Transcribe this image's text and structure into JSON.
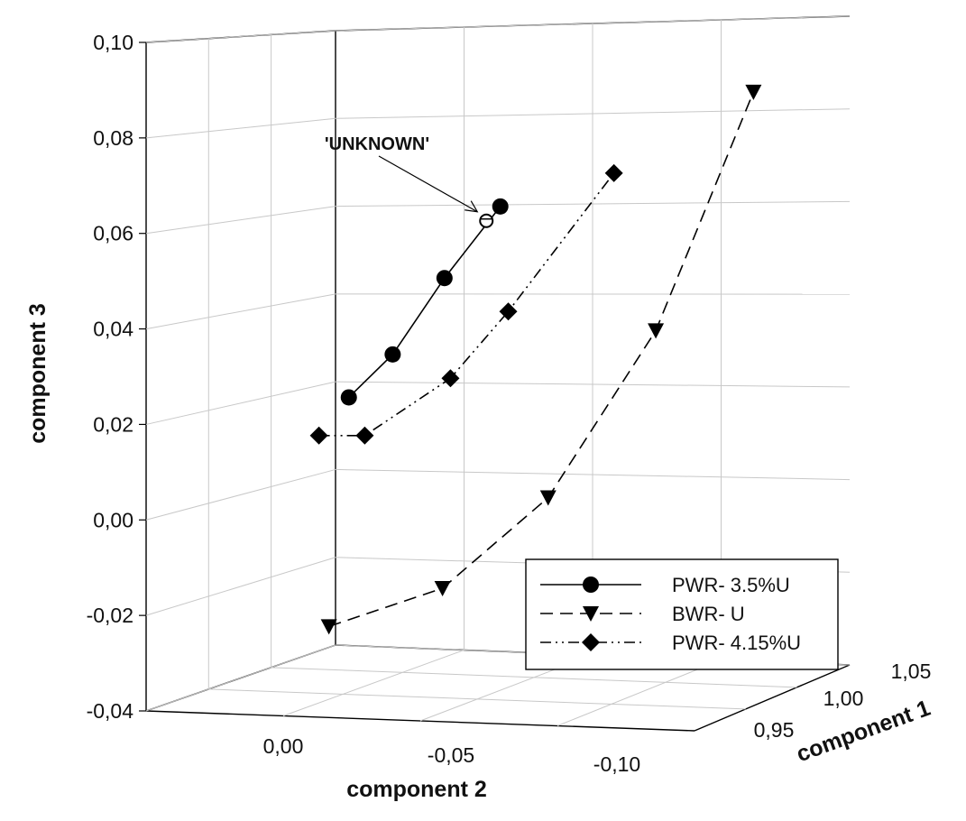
{
  "chart_data": {
    "type": "scatter",
    "projection": "3d",
    "axes": {
      "x": {
        "label": "component 1",
        "ticks": [
          "0,95",
          "1,00",
          "1,05"
        ],
        "range": [
          0.93,
          1.06
        ]
      },
      "y": {
        "label": "component 2",
        "ticks": [
          "0,00",
          "-0,05",
          "-0,10"
        ],
        "range": [
          0.03,
          -0.13
        ]
      },
      "z": {
        "label": "component 3",
        "ticks": [
          "-0,04",
          "-0,02",
          "0,00",
          "0,02",
          "0,04",
          "0,06",
          "0,08",
          "0,10"
        ],
        "range": [
          -0.04,
          0.1
        ]
      }
    },
    "grid": true,
    "legend_position": "bottom-right",
    "series": [
      {
        "name": "PWR- 3.5%U",
        "marker": "circle",
        "line": "solid",
        "points": [
          {
            "c1": 1.0,
            "c2": 0.006,
            "c3": 0.026
          },
          {
            "c1": 1.0,
            "c2": -0.016,
            "c3": 0.035
          },
          {
            "c1": 1.0,
            "c2": -0.042,
            "c3": 0.051
          },
          {
            "c1": 1.0,
            "c2": -0.07,
            "c3": 0.066
          }
        ]
      },
      {
        "name": "BWR- U",
        "marker": "triangle-down",
        "line": "dashed",
        "points": [
          {
            "c1": 1.0,
            "c2": 0.016,
            "c3": -0.022
          },
          {
            "c1": 1.0,
            "c2": -0.041,
            "c3": -0.014
          },
          {
            "c1": 1.0,
            "c2": -0.094,
            "c3": 0.005
          },
          {
            "c1": 1.0,
            "c2": -0.148,
            "c3": 0.04
          },
          {
            "c1": 1.0,
            "c2": -0.197,
            "c3": 0.09
          }
        ]
      },
      {
        "name": "PWR- 4.15%U",
        "marker": "diamond",
        "line": "dash-dot-dot",
        "points": [
          {
            "c1": 1.0,
            "c2": 0.021,
            "c3": 0.018
          },
          {
            "c1": 1.0,
            "c2": -0.002,
            "c3": 0.018
          },
          {
            "c1": 1.0,
            "c2": -0.045,
            "c3": 0.03
          },
          {
            "c1": 1.0,
            "c2": -0.074,
            "c3": 0.044
          },
          {
            "c1": 1.0,
            "c2": -0.127,
            "c3": 0.073
          }
        ]
      }
    ],
    "annotations": [
      {
        "text": "'UNKNOWN'",
        "marker": "open-circle",
        "target": {
          "c1": 1.0,
          "c2": -0.063,
          "c3": 0.063
        }
      }
    ]
  }
}
